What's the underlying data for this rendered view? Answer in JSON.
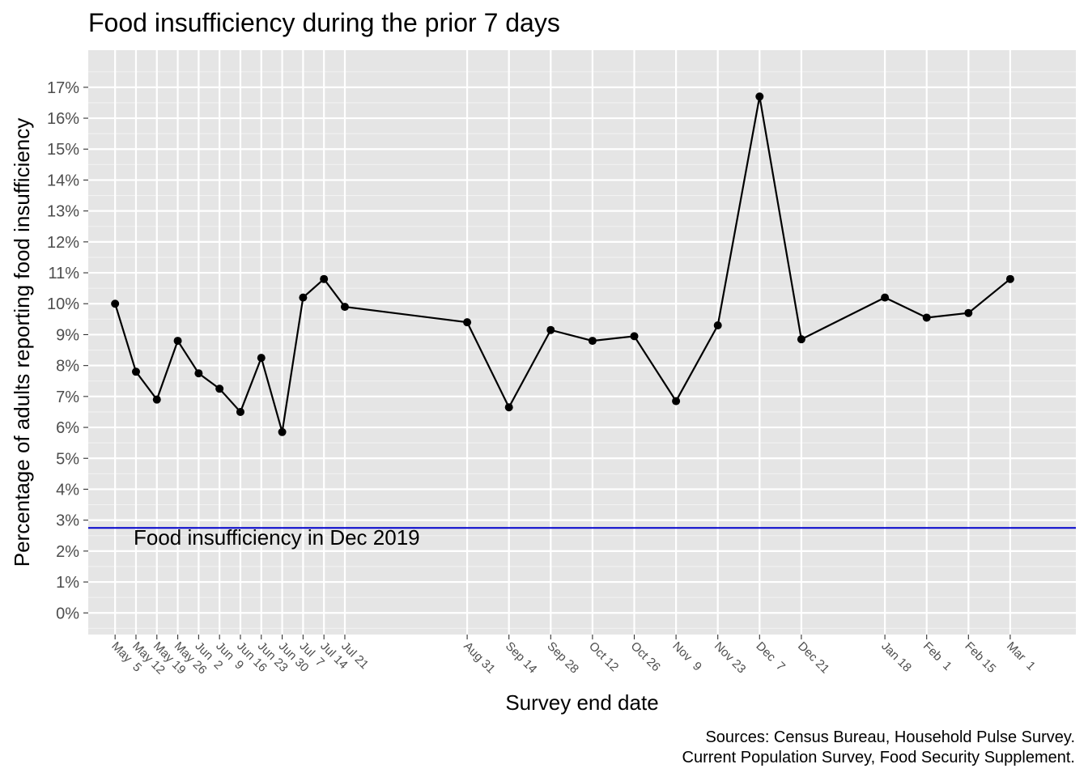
{
  "chart_data": {
    "type": "line",
    "title": "Food insufficiency during the prior 7 days",
    "xlabel": "Survey end date",
    "ylabel": "Percentage of adults reporting food insufficiency",
    "caption": [
      "Sources: Census Bureau, Household Pulse Survey.",
      "Current Population Survey, Food Security Supplement."
    ],
    "ylim": [
      -0.7,
      18.2
    ],
    "y_ticks": [
      0,
      1,
      2,
      3,
      4,
      5,
      6,
      7,
      8,
      9,
      10,
      11,
      12,
      13,
      14,
      15,
      16,
      17
    ],
    "y_tick_labels": [
      "0%",
      "1%",
      "2%",
      "3%",
      "4%",
      "5%",
      "6%",
      "7%",
      "8%",
      "9%",
      "10%",
      "11%",
      "12%",
      "13%",
      "14%",
      "15%",
      "16%",
      "17%"
    ],
    "grid": true,
    "panel_background": "#e5e5e5",
    "x": [
      "2020-05-05",
      "2020-05-12",
      "2020-05-19",
      "2020-05-26",
      "2020-06-02",
      "2020-06-09",
      "2020-06-16",
      "2020-06-23",
      "2020-06-30",
      "2020-07-07",
      "2020-07-14",
      "2020-07-21",
      "2020-08-31",
      "2020-09-14",
      "2020-09-28",
      "2020-10-12",
      "2020-10-26",
      "2020-11-09",
      "2020-11-23",
      "2020-12-07",
      "2020-12-21",
      "2021-01-18",
      "2021-02-01",
      "2021-02-15",
      "2021-03-01"
    ],
    "x_tick_labels": [
      "May  5",
      "May 12",
      "May 19",
      "May 26",
      "Jun  2",
      "Jun  9",
      "Jun 16",
      "Jun 23",
      "Jun 30",
      "Jul  7",
      "Jul 14",
      "Jul 21",
      "Aug 31",
      "Sep 14",
      "Sep 28",
      "Oct 12",
      "Oct 26",
      "Nov  9",
      "Nov 23",
      "Dec  7",
      "Dec 21",
      "Jan 18",
      "Feb  1",
      "Feb 15",
      "Mar  1"
    ],
    "xlim": [
      "2020-04-26",
      "2021-03-23"
    ],
    "series": [
      {
        "color": "#000000",
        "values": [
          10.0,
          7.8,
          6.9,
          8.8,
          7.75,
          7.25,
          6.5,
          8.25,
          5.85,
          10.2,
          10.8,
          9.9,
          9.4,
          6.65,
          9.15,
          8.8,
          8.95,
          6.85,
          9.3,
          16.7,
          8.85,
          10.2,
          9.55,
          9.7,
          10.8
        ]
      }
    ],
    "reference_line": {
      "value": 2.75,
      "color": "#0000cc",
      "label": "Food insufficiency in Dec 2019"
    }
  }
}
